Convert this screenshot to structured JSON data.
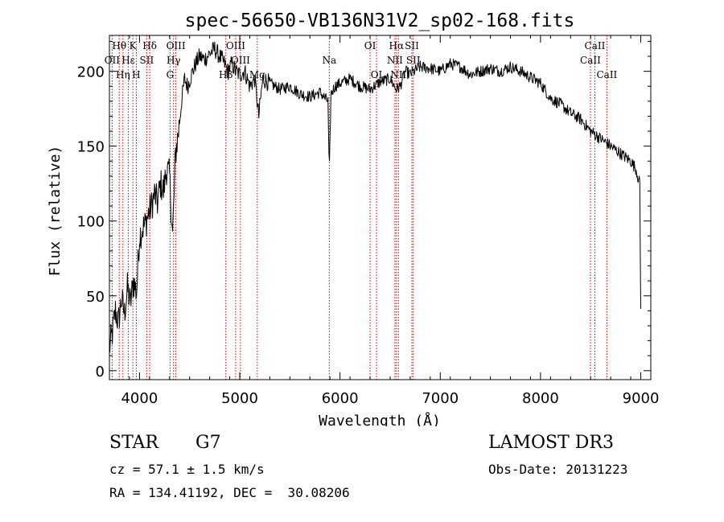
{
  "chart_data": {
    "type": "line",
    "title": "spec-56650-VB136N31V2_sp02-168.fits",
    "xlabel": "Wavelength (Å)",
    "ylabel": "Flux (relative)",
    "xlim": [
      3700,
      9100
    ],
    "ylim": [
      -6,
      224
    ],
    "xticks": [
      4000,
      5000,
      6000,
      7000,
      8000,
      9000
    ],
    "yticks": [
      0,
      50,
      100,
      150,
      200
    ],
    "xtick_labels": [
      "4000",
      "5000",
      "6000",
      "7000",
      "8000",
      "9000"
    ],
    "ytick_labels": [
      "0",
      "50",
      "100",
      "150",
      "200"
    ],
    "series": [
      {
        "name": "flux",
        "x": [
          3700,
          3730,
          3760,
          3790,
          3820,
          3850,
          3880,
          3910,
          3940,
          3970,
          4000,
          4030,
          4060,
          4090,
          4120,
          4150,
          4180,
          4210,
          4240,
          4270,
          4300,
          4330,
          4360,
          4390,
          4420,
          4450,
          4480,
          4520,
          4560,
          4600,
          4650,
          4700,
          4750,
          4800,
          4850,
          4880,
          4920,
          4960,
          5000,
          5050,
          5100,
          5150,
          5190,
          5230,
          5300,
          5400,
          5500,
          5600,
          5700,
          5800,
          5850,
          5880,
          5893,
          5910,
          5950,
          6000,
          6100,
          6200,
          6300,
          6400,
          6500,
          6560,
          6600,
          6650,
          6700,
          6800,
          6900,
          7000,
          7100,
          7200,
          7300,
          7400,
          7500,
          7600,
          7700,
          7800,
          7900,
          8000,
          8100,
          8200,
          8300,
          8400,
          8500,
          8600,
          8700,
          8800,
          8900,
          8950,
          8990,
          9000
        ],
        "y": [
          15,
          25,
          40,
          32,
          48,
          38,
          55,
          45,
          60,
          52,
          90,
          95,
          98,
          105,
          110,
          118,
          112,
          125,
          120,
          135,
          130,
          90,
          145,
          160,
          180,
          195,
          190,
          198,
          205,
          210,
          208,
          212,
          215,
          210,
          205,
          200,
          205,
          200,
          198,
          200,
          190,
          195,
          170,
          195,
          192,
          188,
          190,
          185,
          183,
          186,
          182,
          180,
          130,
          185,
          190,
          192,
          195,
          190,
          188,
          193,
          195,
          188,
          190,
          200,
          198,
          203,
          202,
          200,
          205,
          203,
          198,
          200,
          202,
          200,
          203,
          200,
          196,
          192,
          182,
          178,
          172,
          168,
          160,
          155,
          150,
          145,
          140,
          135,
          125,
          40
        ]
      }
    ],
    "line_labels": [
      {
        "label": "Hθ",
        "x": 3798,
        "row": 1
      },
      {
        "label": "OII",
        "x": 3727,
        "row": 2
      },
      {
        "label": "Hη",
        "x": 3835,
        "row": 3
      },
      {
        "label": "Hε",
        "x": 3889,
        "row": 2
      },
      {
        "label": "K",
        "x": 3934,
        "row": 1
      },
      {
        "label": "H",
        "x": 3968,
        "row": 3
      },
      {
        "label": "Hδ",
        "x": 4102,
        "row": 1
      },
      {
        "label": "SII",
        "x": 4072,
        "row": 2
      },
      {
        "label": "OIII",
        "x": 4363,
        "row": 1
      },
      {
        "label": "Hγ",
        "x": 4340,
        "row": 2
      },
      {
        "label": "G",
        "x": 4305,
        "row": 3
      },
      {
        "label": "Hβ",
        "x": 4861,
        "row": 3
      },
      {
        "label": "OIII",
        "x": 4959,
        "row": 1
      },
      {
        "label": "OIII",
        "x": 5007,
        "row": 2
      },
      {
        "label": "Mg",
        "x": 5175,
        "row": 3
      },
      {
        "label": "Na",
        "x": 5893,
        "row": 2
      },
      {
        "label": "OI",
        "x": 6300,
        "row": 1
      },
      {
        "label": "OI",
        "x": 6364,
        "row": 3
      },
      {
        "label": "Hα",
        "x": 6563,
        "row": 1
      },
      {
        "label": "NII",
        "x": 6548,
        "row": 2
      },
      {
        "label": "NII",
        "x": 6583,
        "row": 3
      },
      {
        "label": "SII",
        "x": 6717,
        "row": 1
      },
      {
        "label": "SII",
        "x": 6731,
        "row": 2
      },
      {
        "label": "CaII",
        "x": 8542,
        "row": 1
      },
      {
        "label": "CaII",
        "x": 8498,
        "row": 2
      },
      {
        "label": "CaII",
        "x": 8662,
        "row": 3
      }
    ],
    "line_marker_color": "#cc0000",
    "trace_color": "#000000"
  },
  "info": {
    "object_type": "STAR",
    "object_class": "G7",
    "cz": "cz = 57.1 ± 1.5 km/s",
    "radec": "RA = 134.41192, DEC =  30.08206",
    "survey": "LAMOST DR3",
    "obs_date": "Obs-Date: 20131223"
  }
}
